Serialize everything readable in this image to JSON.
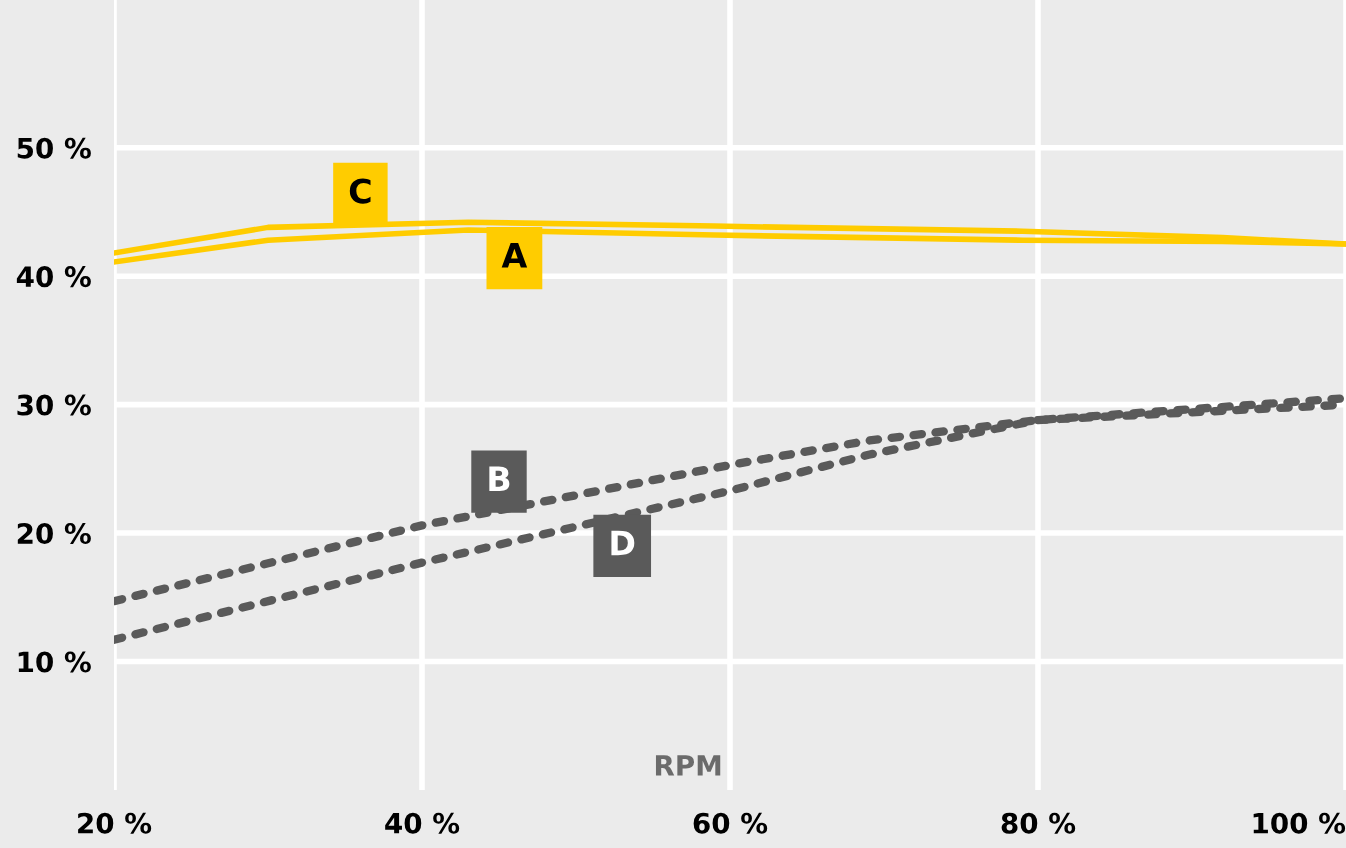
{
  "chart_data": {
    "type": "line",
    "xlabel": "RPM",
    "xlim": [
      20,
      100
    ],
    "ylim": [
      0,
      61.5
    ],
    "xticks": [
      {
        "value": 20,
        "label": "20 %"
      },
      {
        "value": 40,
        "label": "40 %"
      },
      {
        "value": 60,
        "label": "60 %"
      },
      {
        "value": 80,
        "label": "80 %"
      },
      {
        "value": 100,
        "label": "100 %"
      }
    ],
    "yticks": [
      {
        "value": 10,
        "label": "10 %"
      },
      {
        "value": 20,
        "label": "20 %"
      },
      {
        "value": 30,
        "label": "30 %"
      },
      {
        "value": 40,
        "label": "40 %"
      },
      {
        "value": 50,
        "label": "50 %"
      }
    ],
    "grid": true,
    "legend": false,
    "series": [
      {
        "color": "#ffcc00",
        "line_style": "solid",
        "x": [
          20,
          30,
          43,
          59,
          79,
          92,
          100
        ],
        "values": [
          41.1,
          42.8,
          43.6,
          43.2,
          42.8,
          42.7,
          42.5
        ]
      },
      {
        "color": "#5a5a5a",
        "line_style": "dotted",
        "x": [
          20,
          40,
          60,
          69,
          80,
          100
        ],
        "values": [
          14.7,
          20.6,
          25.3,
          27.2,
          28.8,
          30.5
        ]
      },
      {
        "color": "#ffcc00",
        "line_style": "solid",
        "x": [
          20,
          30,
          43,
          59,
          79,
          92,
          100
        ],
        "values": [
          41.8,
          43.8,
          44.2,
          43.9,
          43.5,
          43.0,
          42.5
        ]
      },
      {
        "color": "#5a5a5a",
        "line_style": "dotted",
        "x": [
          20,
          40,
          60,
          69,
          80,
          100
        ],
        "values": [
          11.7,
          17.7,
          23.3,
          26.1,
          28.8,
          30.0
        ]
      }
    ],
    "annotations": [
      {
        "text": "A",
        "x": 46,
        "y": 41.4
      },
      {
        "text": "B",
        "x": 45,
        "y": 24
      },
      {
        "text": "C",
        "x": 36,
        "y": 46.4
      },
      {
        "text": "D",
        "x": 53,
        "y": 19
      }
    ]
  }
}
